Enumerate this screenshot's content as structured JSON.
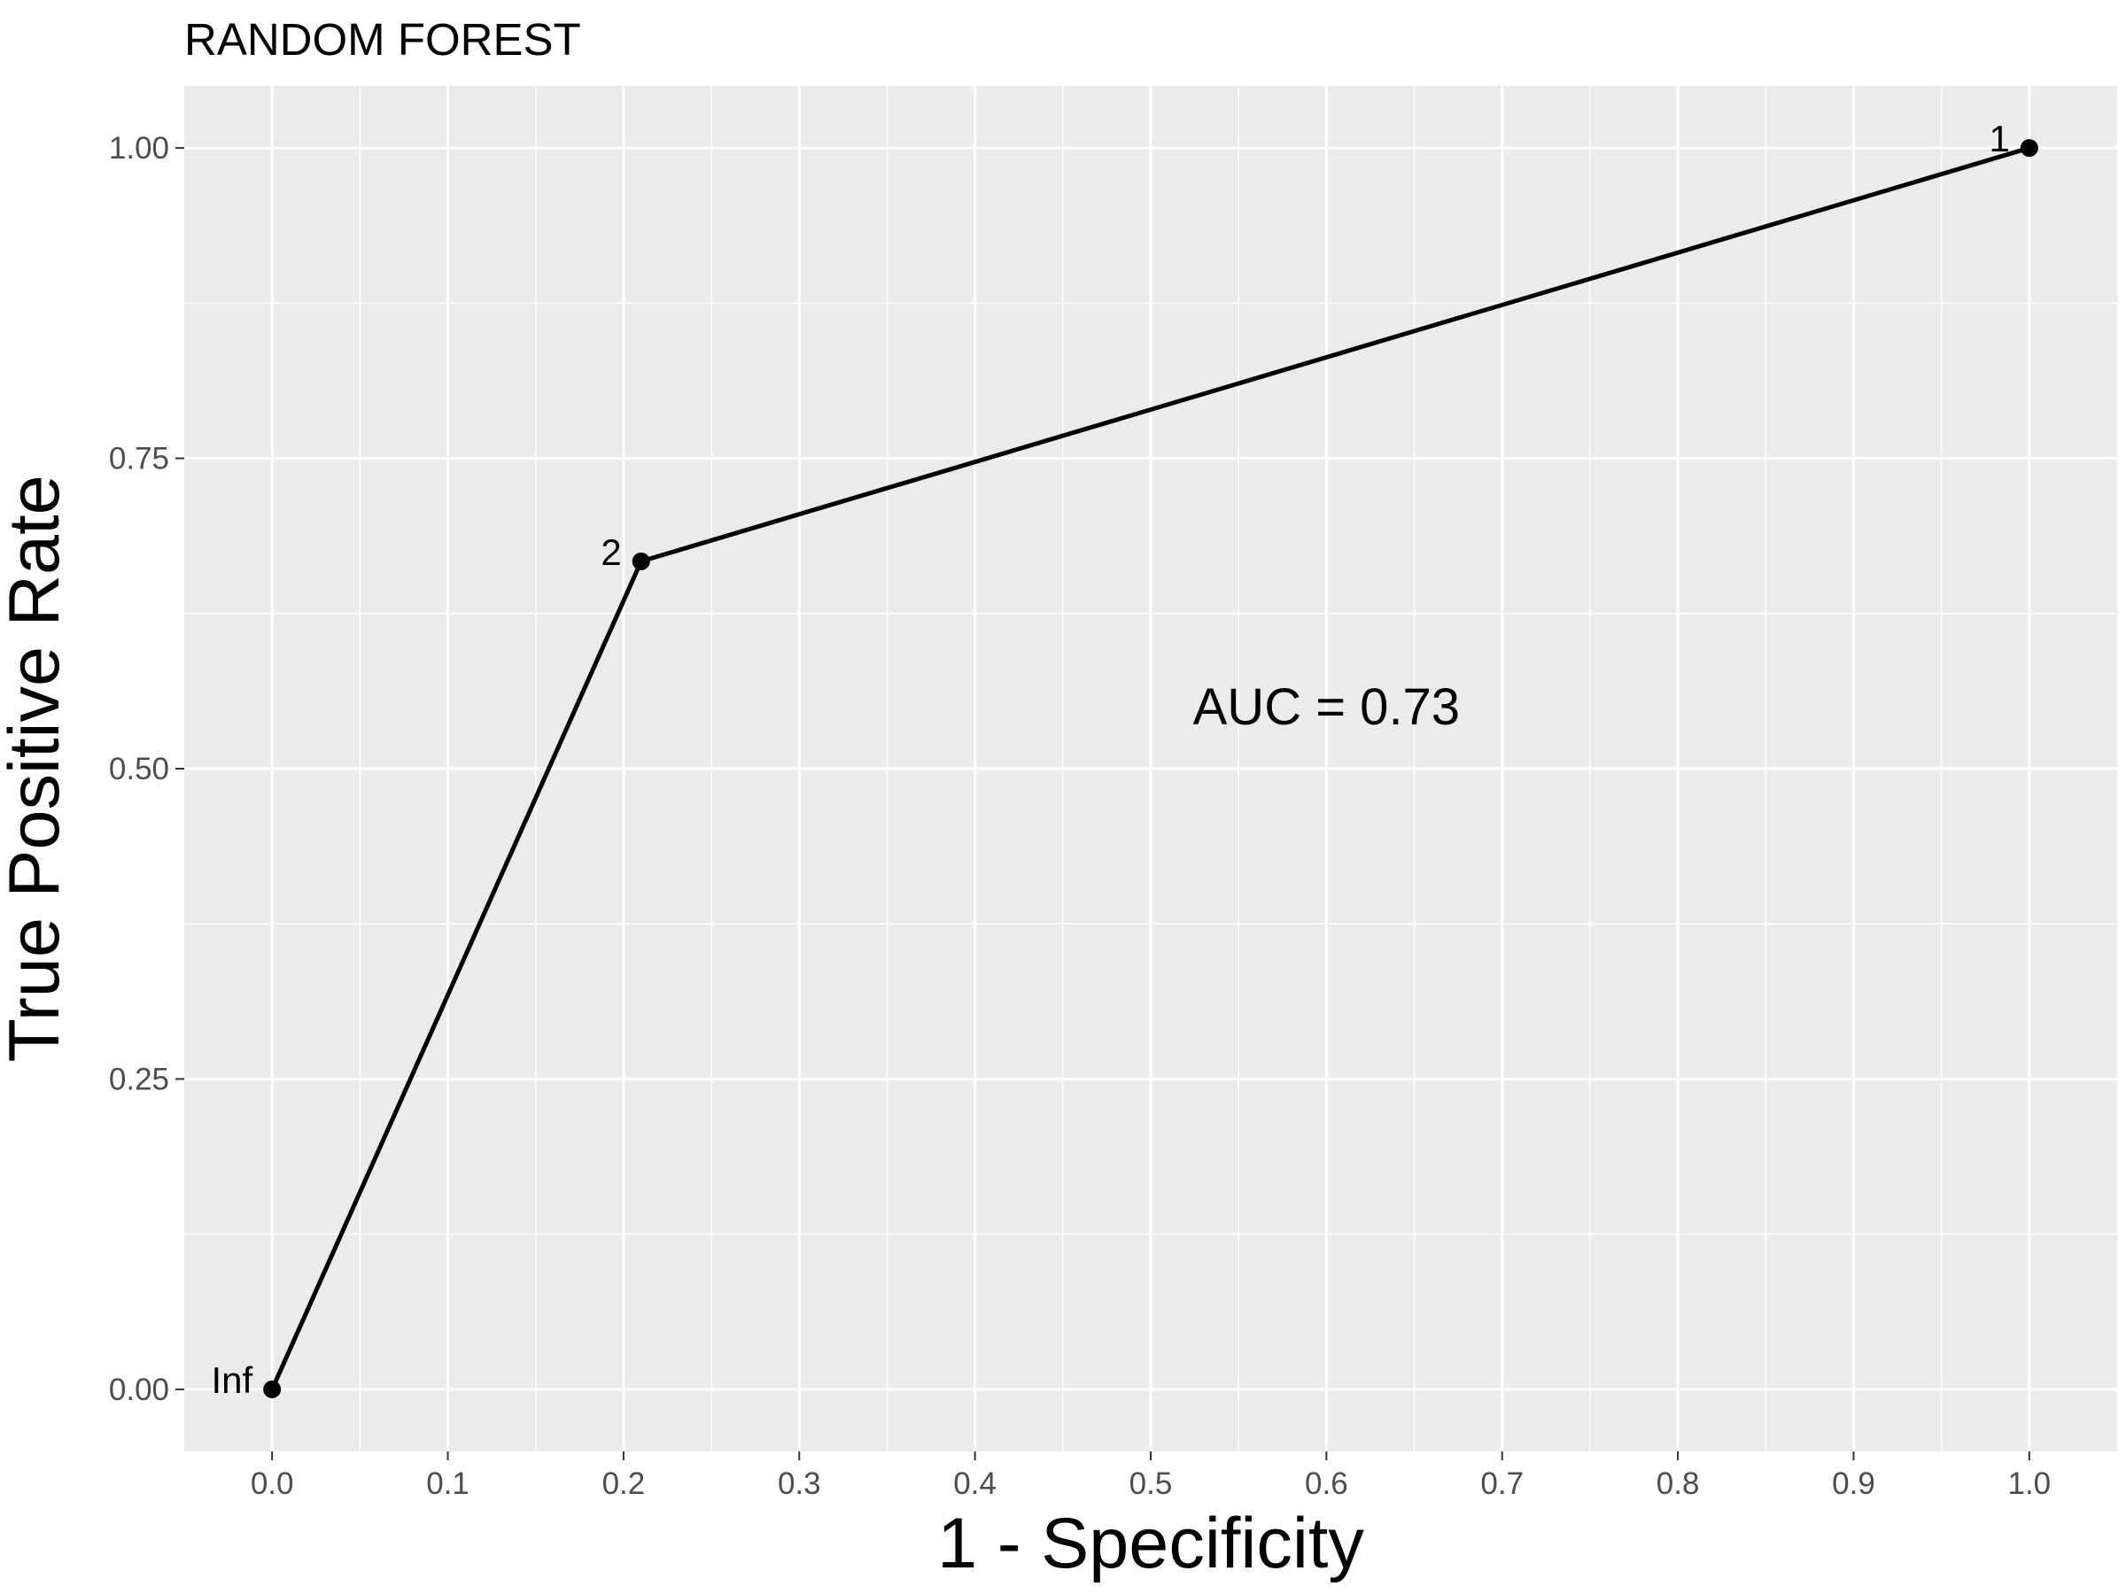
{
  "chart_data": {
    "type": "line",
    "title": "RANDOM FOREST",
    "xlabel": "1 - Specificity",
    "ylabel": "True Positive Rate",
    "xlim": [
      -0.05,
      1.05
    ],
    "ylim": [
      -0.05,
      1.05
    ],
    "x_ticks": [
      "0.0",
      "0.1",
      "0.2",
      "0.3",
      "0.4",
      "0.5",
      "0.6",
      "0.7",
      "0.8",
      "0.9",
      "1.0"
    ],
    "y_ticks": [
      "0.00",
      "0.25",
      "0.50",
      "0.75",
      "1.00"
    ],
    "grid": true,
    "series": [
      {
        "points": [
          {
            "x": 0.0,
            "y": 0.0,
            "label": "Inf"
          },
          {
            "x": 0.21,
            "y": 0.667,
            "label": "2"
          },
          {
            "x": 1.0,
            "y": 1.0,
            "label": "1"
          }
        ]
      }
    ],
    "annotation": {
      "text": "AUC = 0.73",
      "x": 0.6,
      "y": 0.55
    },
    "colors": {
      "panel": "#ebebeb",
      "grid": "#ffffff",
      "line": "#000000"
    }
  }
}
